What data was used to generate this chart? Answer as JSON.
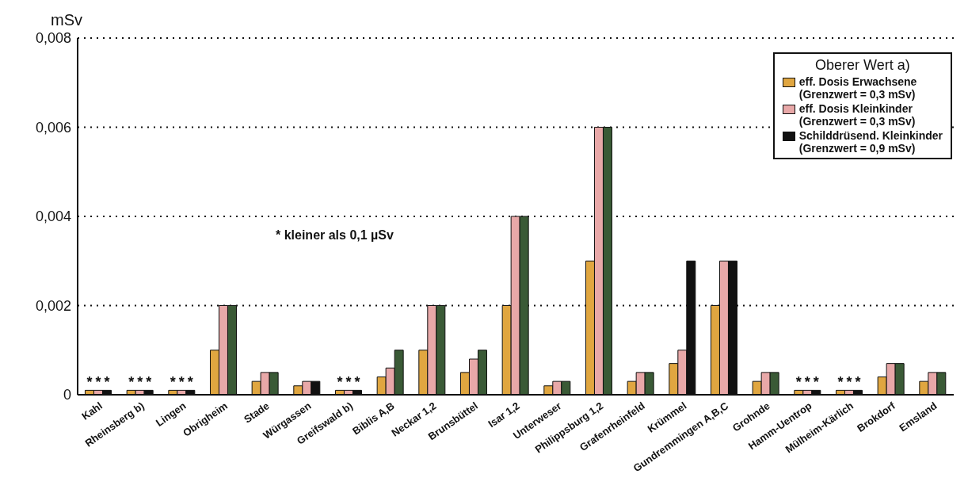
{
  "chart_data": {
    "type": "bar",
    "ylabel": "mSv",
    "legend_title": "Oberer Wert a)",
    "legend": "top right",
    "grid": "y",
    "line_style": "dotted",
    "categories": [
      "Kahl",
      "Rheinsberg b)",
      "Lingen",
      "Obrigheim",
      "Stade",
      "Würgassen",
      "Greifswald b)",
      "Biblis A,B",
      "Neckar 1,2",
      "Brunsbüttel",
      "Isar 1,2",
      "Unterweser",
      "Philippsburg 1,2",
      "Grafenrheinfeld",
      "Krümmel",
      "Gundremmingen A,B,C",
      "Grohnde",
      "Hamm-Uentrop",
      "Mülheim-Kärlich",
      "Brokdorf",
      "Emsland"
    ],
    "series": [
      {
        "name": "eff. Dosis Erwachsene\n(Grenzwert = 0,3 mSv)",
        "color": "#e0a640",
        "values": [
          0.0001,
          0.0001,
          0.0001,
          0.001,
          0.0003,
          0.0002,
          0.0001,
          0.0004,
          0.001,
          0.0005,
          0.002,
          0.0002,
          0.003,
          0.0003,
          0.0007,
          0.002,
          0.0003,
          0.0001,
          0.0001,
          0.0004,
          0.0003
        ],
        "value_labels": [
          "*",
          "*",
          "*",
          null,
          null,
          null,
          "*",
          null,
          null,
          null,
          null,
          null,
          null,
          null,
          null,
          null,
          null,
          "*",
          "*",
          null,
          null
        ]
      },
      {
        "name": "eff. Dosis Kleinkinder\n(Grenzwert = 0,3 mSv)",
        "color": "#e8a8a8",
        "values": [
          0.0001,
          0.0001,
          0.0001,
          0.002,
          0.0005,
          0.0003,
          0.0001,
          0.0006,
          0.002,
          0.0008,
          0.004,
          0.0003,
          0.006,
          0.0005,
          0.001,
          0.003,
          0.0005,
          0.0001,
          0.0001,
          0.0007,
          0.0005
        ],
        "value_labels": [
          "*",
          "*",
          "*",
          null,
          null,
          null,
          "*",
          null,
          null,
          null,
          null,
          null,
          null,
          null,
          null,
          null,
          null,
          "*",
          "*",
          null,
          null
        ]
      },
      {
        "name": "Schilddrüsend. Kleinkinder\n(Grenzwert = 0,9 mSv)",
        "color": "#111111",
        "colors": [
          "#111111",
          "#111111",
          "#111111",
          "#3a5a36",
          "#3a5a36",
          "#111111",
          "#111111",
          "#3a5a36",
          "#3a5a36",
          "#3a5a36",
          "#3a5a36",
          "#3a5a36",
          "#3a5a36",
          "#3a5a36",
          "#111111",
          "#111111",
          "#3a5a36",
          "#111111",
          "#111111",
          "#3a5a36",
          "#3a5a36"
        ],
        "values": [
          0.0001,
          0.0001,
          0.0001,
          0.002,
          0.0005,
          0.0003,
          0.0001,
          0.001,
          0.002,
          0.001,
          0.004,
          0.0003,
          0.006,
          0.0005,
          0.003,
          0.003,
          0.0005,
          0.0001,
          0.0001,
          0.0007,
          0.0005
        ],
        "value_labels": [
          "*",
          "*",
          "*",
          null,
          null,
          null,
          "*",
          null,
          null,
          null,
          null,
          null,
          null,
          null,
          null,
          null,
          null,
          "*",
          "*",
          null,
          null
        ]
      }
    ],
    "ylim": [
      0,
      0.008
    ],
    "yticks": [
      {
        "value": 0,
        "label": "0"
      },
      {
        "value": 0.002,
        "label": "0,002"
      },
      {
        "value": 0.004,
        "label": "0,004"
      },
      {
        "value": 0.006,
        "label": "0,006"
      },
      {
        "value": 0.008,
        "label": "0,008"
      }
    ],
    "annotations": [
      "* kleiner als 0,1 µSv"
    ]
  }
}
